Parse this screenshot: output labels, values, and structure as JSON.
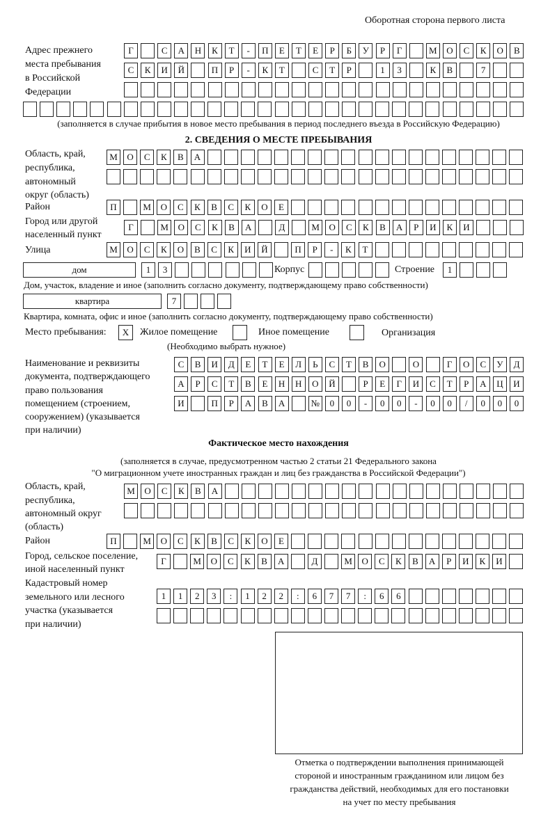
{
  "header": {
    "page_side": "Оборотная сторона первого листа"
  },
  "previous_address": {
    "label": [
      "Адрес прежнего",
      "места пребывания",
      "в Российской",
      "Федерации"
    ],
    "rows": [
      [
        "Г",
        "",
        "С",
        "А",
        "Н",
        "К",
        "Т",
        "-",
        "П",
        "Е",
        "Т",
        "Е",
        "Р",
        "Б",
        "У",
        "Р",
        "Г",
        "",
        "М",
        "О",
        "С",
        "К",
        "О",
        "В"
      ],
      [
        "С",
        "К",
        "И",
        "Й",
        "",
        "П",
        "Р",
        "-",
        "К",
        "Т",
        "",
        "С",
        "Т",
        "Р",
        "",
        "1",
        "3",
        "",
        "К",
        "В",
        "",
        "7",
        "",
        ""
      ],
      [
        "",
        "",
        "",
        "",
        "",
        "",
        "",
        "",
        "",
        "",
        "",
        "",
        "",
        "",
        "",
        "",
        "",
        "",
        "",
        "",
        "",
        "",
        "",
        ""
      ],
      [
        "",
        "",
        "",
        "",
        "",
        "",
        "",
        "",
        "",
        "",
        "",
        "",
        "",
        "",
        "",
        "",
        "",
        "",
        "",
        "",
        "",
        "",
        "",
        "",
        "",
        "",
        "",
        "",
        "",
        ""
      ]
    ],
    "note": "(заполняется в случае прибытия в новое место пребывания в период последнего въезда в Российскую Федерацию)"
  },
  "section2": {
    "title": "2. СВЕДЕНИЯ О МЕСТЕ ПРЕБЫВАНИЯ",
    "region_label": [
      "Область, край,",
      "республика,",
      "автономный",
      "округ (область)"
    ],
    "region_rows": [
      [
        "М",
        "О",
        "С",
        "К",
        "В",
        "А",
        "",
        "",
        "",
        "",
        "",
        "",
        "",
        "",
        "",
        "",
        "",
        "",
        "",
        "",
        "",
        "",
        "",
        "",
        ""
      ],
      [
        "",
        "",
        "",
        "",
        "",
        "",
        "",
        "",
        "",
        "",
        "",
        "",
        "",
        "",
        "",
        "",
        "",
        "",
        "",
        "",
        "",
        "",
        "",
        "",
        ""
      ]
    ],
    "district_label": "Район",
    "district_row": [
      "П",
      "",
      "М",
      "О",
      "С",
      "К",
      "В",
      "С",
      "К",
      "О",
      "Е",
      "",
      "",
      "",
      "",
      "",
      "",
      "",
      "",
      "",
      "",
      "",
      "",
      "",
      ""
    ],
    "city_label": [
      "Город или другой",
      "населенный пункт"
    ],
    "city_row": [
      "Г",
      "",
      "М",
      "О",
      "С",
      "К",
      "В",
      "А",
      "",
      "Д",
      "",
      "М",
      "О",
      "С",
      "К",
      "В",
      "А",
      "Р",
      "И",
      "К",
      "И",
      "",
      "",
      ""
    ],
    "street_label": "Улица",
    "street_row": [
      "М",
      "О",
      "С",
      "К",
      "О",
      "В",
      "С",
      "К",
      "И",
      "Й",
      "",
      "П",
      "Р",
      "-",
      "К",
      "Т",
      "",
      "",
      "",
      "",
      "",
      "",
      "",
      "",
      ""
    ],
    "house_type": "дом",
    "house_row": [
      "1",
      "3",
      "",
      "",
      "",
      "",
      "",
      ""
    ],
    "korpus_label": "Корпус",
    "korpus_row": [
      "",
      "",
      "",
      "",
      ""
    ],
    "building_label": "Строение",
    "building_row": [
      "1",
      "",
      "",
      ""
    ],
    "house_note": "Дом, участок, владение и иное (заполнить согласно документу, подтверждающему право собственности)",
    "apt_type": "квартира",
    "apt_row": [
      "7",
      "",
      "",
      ""
    ],
    "apt_note": "Квартира, комната, офис и иное (заполнить согласно документу, подтверждающему право собственности)",
    "stay_label": "Место пребывания:",
    "stay_options": [
      {
        "label": "Жилое помещение",
        "mark": "X"
      },
      {
        "label": "Иное помещение",
        "mark": ""
      },
      {
        "label": "Организация",
        "mark": ""
      }
    ],
    "stay_note": "(Необходимо выбрать нужное)",
    "doc_label": [
      "Наименование и реквизиты",
      "документа, подтверждающего",
      "право пользования",
      "помещением (строением,",
      "сооружением) (указывается",
      "при наличии)"
    ],
    "doc_rows": [
      [
        "С",
        "В",
        "И",
        "Д",
        "Е",
        "Т",
        "Е",
        "Л",
        "Ь",
        "С",
        "Т",
        "В",
        "О",
        "",
        "О",
        "",
        "Г",
        "О",
        "С",
        "У",
        "Д"
      ],
      [
        "А",
        "Р",
        "С",
        "Т",
        "В",
        "Е",
        "Н",
        "Н",
        "О",
        "Й",
        "",
        "Р",
        "Е",
        "Г",
        "И",
        "С",
        "Т",
        "Р",
        "А",
        "Ц",
        "И"
      ],
      [
        "И",
        "",
        "П",
        "Р",
        "А",
        "В",
        "А",
        "",
        "№",
        "0",
        "0",
        "-",
        "0",
        "0",
        "-",
        "0",
        "0",
        "/",
        "0",
        "0",
        "0"
      ]
    ]
  },
  "actual": {
    "title": "Фактическое место нахождения",
    "note": [
      "(заполняется в случае, предусмотренном частью 2 статьи 21 Федерального закона",
      "\"О миграционном учете иностранных граждан и лиц без гражданства в Российской Федерации\")"
    ],
    "region_label": [
      "Область, край,",
      "республика,",
      "автономный округ",
      "(область)"
    ],
    "region_rows": [
      [
        "М",
        "О",
        "С",
        "К",
        "В",
        "А",
        "",
        "",
        "",
        "",
        "",
        "",
        "",
        "",
        "",
        "",
        "",
        "",
        "",
        "",
        "",
        "",
        "",
        ""
      ],
      [
        "",
        "",
        "",
        "",
        "",
        "",
        "",
        "",
        "",
        "",
        "",
        "",
        "",
        "",
        "",
        "",
        "",
        "",
        "",
        "",
        "",
        "",
        "",
        ""
      ]
    ],
    "district_label": "Район",
    "district_row": [
      "П",
      "",
      "М",
      "О",
      "С",
      "К",
      "В",
      "С",
      "К",
      "О",
      "Е",
      "",
      "",
      "",
      "",
      "",
      "",
      "",
      "",
      "",
      "",
      "",
      "",
      "",
      ""
    ],
    "city_label": [
      "Город, сельское поселение,",
      "иной населенный пункт"
    ],
    "city_row": [
      "Г",
      "",
      "М",
      "О",
      "С",
      "К",
      "В",
      "А",
      "",
      "Д",
      "",
      "М",
      "О",
      "С",
      "К",
      "В",
      "А",
      "Р",
      "И",
      "К",
      "И",
      ""
    ],
    "cadastre_label": [
      "Кадастровый номер",
      "земельного или лесного",
      "участка (указывается",
      "при наличии)"
    ],
    "cadastre_rows": [
      [
        "1",
        "1",
        "2",
        "3",
        ":",
        "1",
        "2",
        "2",
        ":",
        "6",
        "7",
        "7",
        ":",
        "6",
        "6",
        "",
        "",
        "",
        "",
        "",
        "",
        ""
      ],
      [
        "",
        "",
        "",
        "",
        "",
        "",
        "",
        "",
        "",
        "",
        "",
        "",
        "",
        "",
        "",
        "",
        "",
        "",
        "",
        "",
        "",
        ""
      ]
    ]
  },
  "stamp": {
    "caption": [
      "Отметка о подтверждении выполнения принимающей",
      "стороной и иностранным гражданином или лицом без",
      "гражданства действий, необходимых для его постановки",
      "на учет по месту пребывания"
    ]
  }
}
